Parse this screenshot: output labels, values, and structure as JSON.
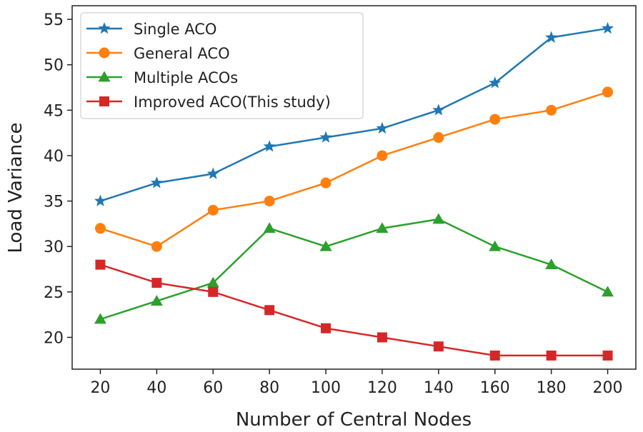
{
  "chart_data": {
    "type": "line",
    "title": "",
    "xlabel": "Number of Central Nodes",
    "ylabel": "Load Variance",
    "x": [
      20,
      40,
      60,
      80,
      100,
      120,
      140,
      160,
      180,
      200
    ],
    "xlim": [
      10,
      210
    ],
    "ylim": [
      16.5,
      56.5
    ],
    "xticks": [
      20,
      40,
      60,
      80,
      100,
      120,
      140,
      160,
      180,
      200
    ],
    "yticks": [
      20,
      25,
      30,
      35,
      40,
      45,
      50,
      55
    ],
    "grid": false,
    "legend_position": "top-left",
    "series": [
      {
        "name": "Single ACO",
        "color": "#1f77b4",
        "marker": "star",
        "values": [
          35,
          37,
          38,
          41,
          42,
          43,
          45,
          48,
          53,
          54
        ]
      },
      {
        "name": "General ACO",
        "color": "#ff7f0e",
        "marker": "circle",
        "values": [
          32,
          30,
          34,
          35,
          37,
          40,
          42,
          44,
          45,
          47
        ]
      },
      {
        "name": "Multiple ACOs",
        "color": "#2ca02c",
        "marker": "triangle",
        "values": [
          22,
          24,
          26,
          32,
          30,
          32,
          33,
          30,
          28,
          25
        ]
      },
      {
        "name": "Improved ACO(This study)",
        "color": "#d62728",
        "marker": "square",
        "values": [
          28,
          26,
          25,
          23,
          21,
          20,
          19,
          18,
          18,
          18
        ]
      }
    ]
  }
}
